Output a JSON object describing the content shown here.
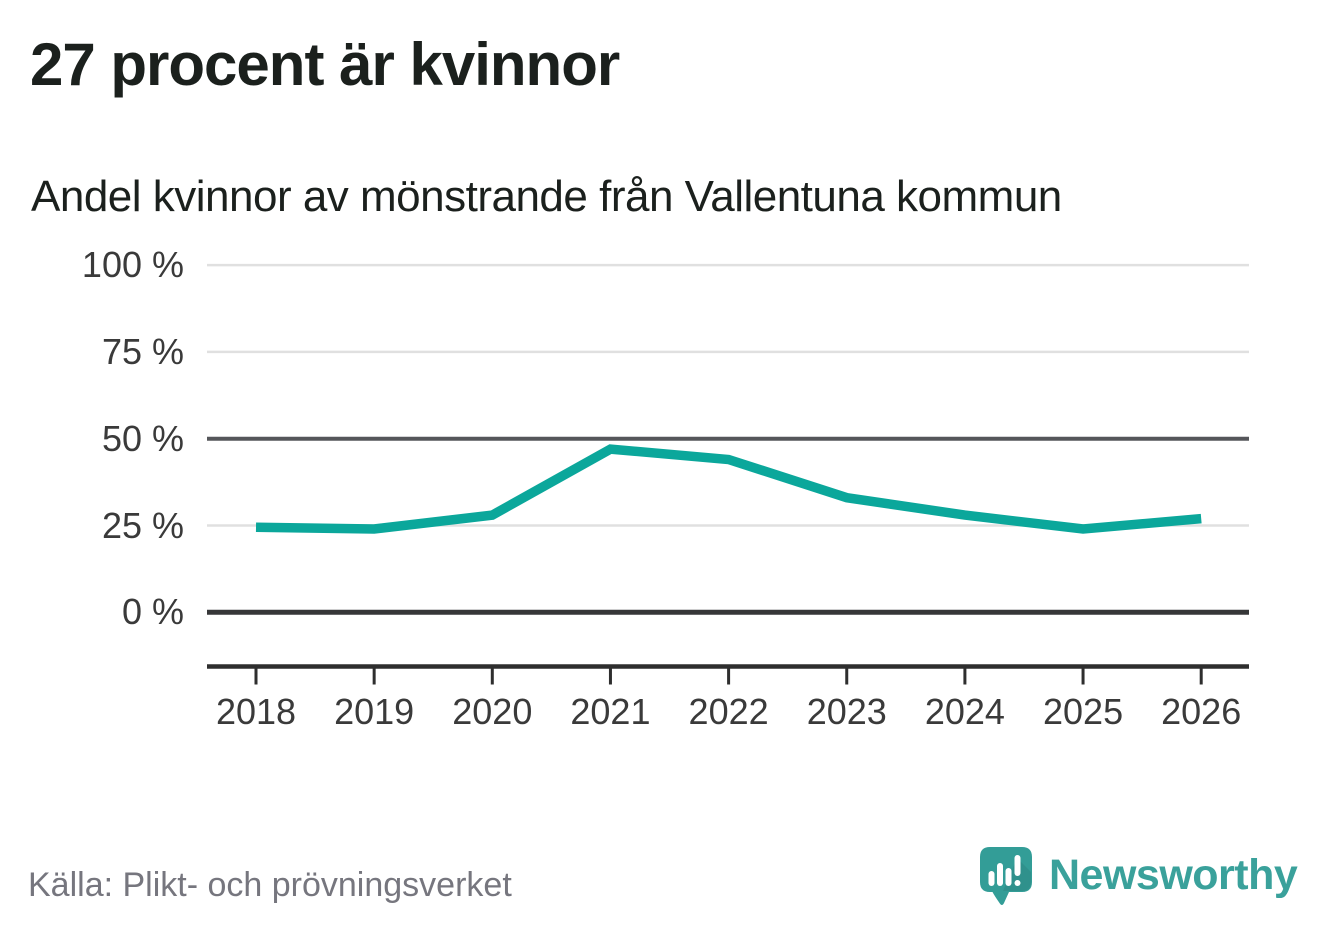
{
  "header": {
    "title": "27 procent är kvinnor",
    "subtitle": "Andel kvinnor av mönstrande från Vallentuna kommun"
  },
  "chart_data": {
    "type": "line",
    "title": "27 procent är kvinnor",
    "subtitle": "Andel kvinnor av mönstrande från Vallentuna kommun",
    "x": [
      2018,
      2019,
      2020,
      2021,
      2022,
      2023,
      2024,
      2025,
      2026
    ],
    "series": [
      {
        "name": "andel-kvinnor",
        "values": [
          24.5,
          24,
          28,
          47,
          44,
          33,
          28,
          24,
          27
        ],
        "color": "#0ba79b"
      }
    ],
    "unit": "%",
    "ylim": [
      0,
      100
    ],
    "yticks": [
      0,
      25,
      50,
      75,
      100
    ],
    "ytick_labels": [
      "0 %",
      "25 %",
      "50 %",
      "75 %",
      "100 %"
    ],
    "xtick_labels": [
      "2018",
      "2019",
      "2020",
      "2021",
      "2022",
      "2023",
      "2024",
      "2025",
      "2026"
    ],
    "grid": "horizontal",
    "legend": "none",
    "emphasized_gridlines": [
      0,
      50
    ]
  },
  "footer": {
    "source": "Källa: Plikt- och prövningsverket",
    "brand": "Newsworthy"
  },
  "icons": {
    "logo_icon": "newsworthy-speech-bubble-bar-chart-icon"
  },
  "colors": {
    "line": "#0ba79b",
    "brand": "#3aa19b",
    "brand_bubble": "#339d97",
    "grid_light": "#e0e0e0",
    "grid_mid": "#55565a",
    "grid_zero": "#363738",
    "axis": "#2e2e2e",
    "title_text": "#1b201d",
    "tick_text": "#3a3a3a",
    "source_text": "#76767e"
  }
}
